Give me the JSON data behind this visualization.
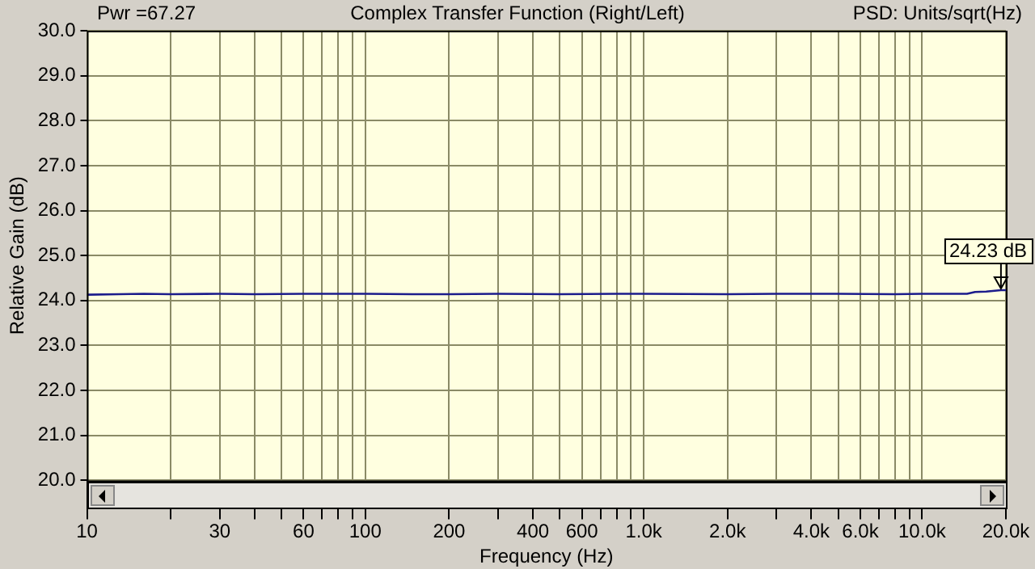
{
  "chart_data": {
    "type": "line",
    "title": "Complex Transfer Function (Right/Left)",
    "xlabel": "Frequency (Hz)",
    "ylabel": "Relative Gain (dB)",
    "annotations": [
      "Pwr =67.27",
      "PSD: Units/sqrt(Hz)",
      {
        "text": "24.23 dB",
        "x": 19200,
        "y": 24.23
      }
    ],
    "log": "x",
    "grid": true,
    "marker": "none",
    "line_style": "solid",
    "series": [
      {
        "color": "#1c1c8c",
        "x": [
          10,
          13,
          16,
          20,
          30,
          40,
          60,
          100,
          150,
          200,
          300,
          500,
          800,
          1000,
          2000,
          3000,
          5000,
          8000,
          10000,
          13000,
          14500,
          15500,
          17000,
          19200,
          20000
        ],
        "values": [
          24.13,
          24.14,
          24.15,
          24.14,
          24.15,
          24.14,
          24.15,
          24.15,
          24.14,
          24.14,
          24.15,
          24.14,
          24.15,
          24.15,
          24.14,
          24.15,
          24.15,
          24.14,
          24.15,
          24.15,
          24.15,
          24.19,
          24.2,
          24.23,
          24.23
        ]
      }
    ],
    "xlim": [
      10,
      20000
    ],
    "xticks": [
      10,
      {
        "value": 20,
        "label": null
      },
      30,
      {
        "value": 40,
        "label": null
      },
      {
        "value": 50,
        "label": null
      },
      60,
      {
        "value": 70,
        "label": null
      },
      {
        "value": 80,
        "label": null
      },
      {
        "value": 90,
        "label": null
      },
      100,
      200,
      {
        "value": 300,
        "label": null
      },
      400,
      {
        "value": 500,
        "label": null
      },
      600,
      {
        "value": 700,
        "label": null
      },
      {
        "value": 800,
        "label": null
      },
      {
        "value": 900,
        "label": null
      },
      {
        "value": 1000,
        "label": "1.0k"
      },
      {
        "value": 2000,
        "label": "2.0k"
      },
      {
        "value": 3000,
        "label": null
      },
      {
        "value": 4000,
        "label": "4.0k"
      },
      {
        "value": 5000,
        "label": null
      },
      {
        "value": 6000,
        "label": "6.0k"
      },
      {
        "value": 7000,
        "label": null
      },
      {
        "value": 8000,
        "label": null
      },
      {
        "value": 9000,
        "label": null
      },
      {
        "value": 10000,
        "label": "10.0k"
      },
      {
        "value": 20000,
        "label": "20.0k"
      }
    ],
    "ylim": [
      20,
      30
    ],
    "yticks": [
      {
        "value": 20,
        "label": "20.0"
      },
      {
        "value": 21,
        "label": "21.0"
      },
      {
        "value": 22,
        "label": "22.0"
      },
      {
        "value": 23,
        "label": "23.0"
      },
      {
        "value": 24,
        "label": "24.0"
      },
      {
        "value": 25,
        "label": "25.0"
      },
      {
        "value": 26,
        "label": "26.0"
      },
      {
        "value": 27,
        "label": "27.0"
      },
      {
        "value": 28,
        "label": "28.0"
      },
      {
        "value": 29,
        "label": "29.0"
      },
      {
        "value": 30,
        "label": "30.0"
      }
    ]
  }
}
